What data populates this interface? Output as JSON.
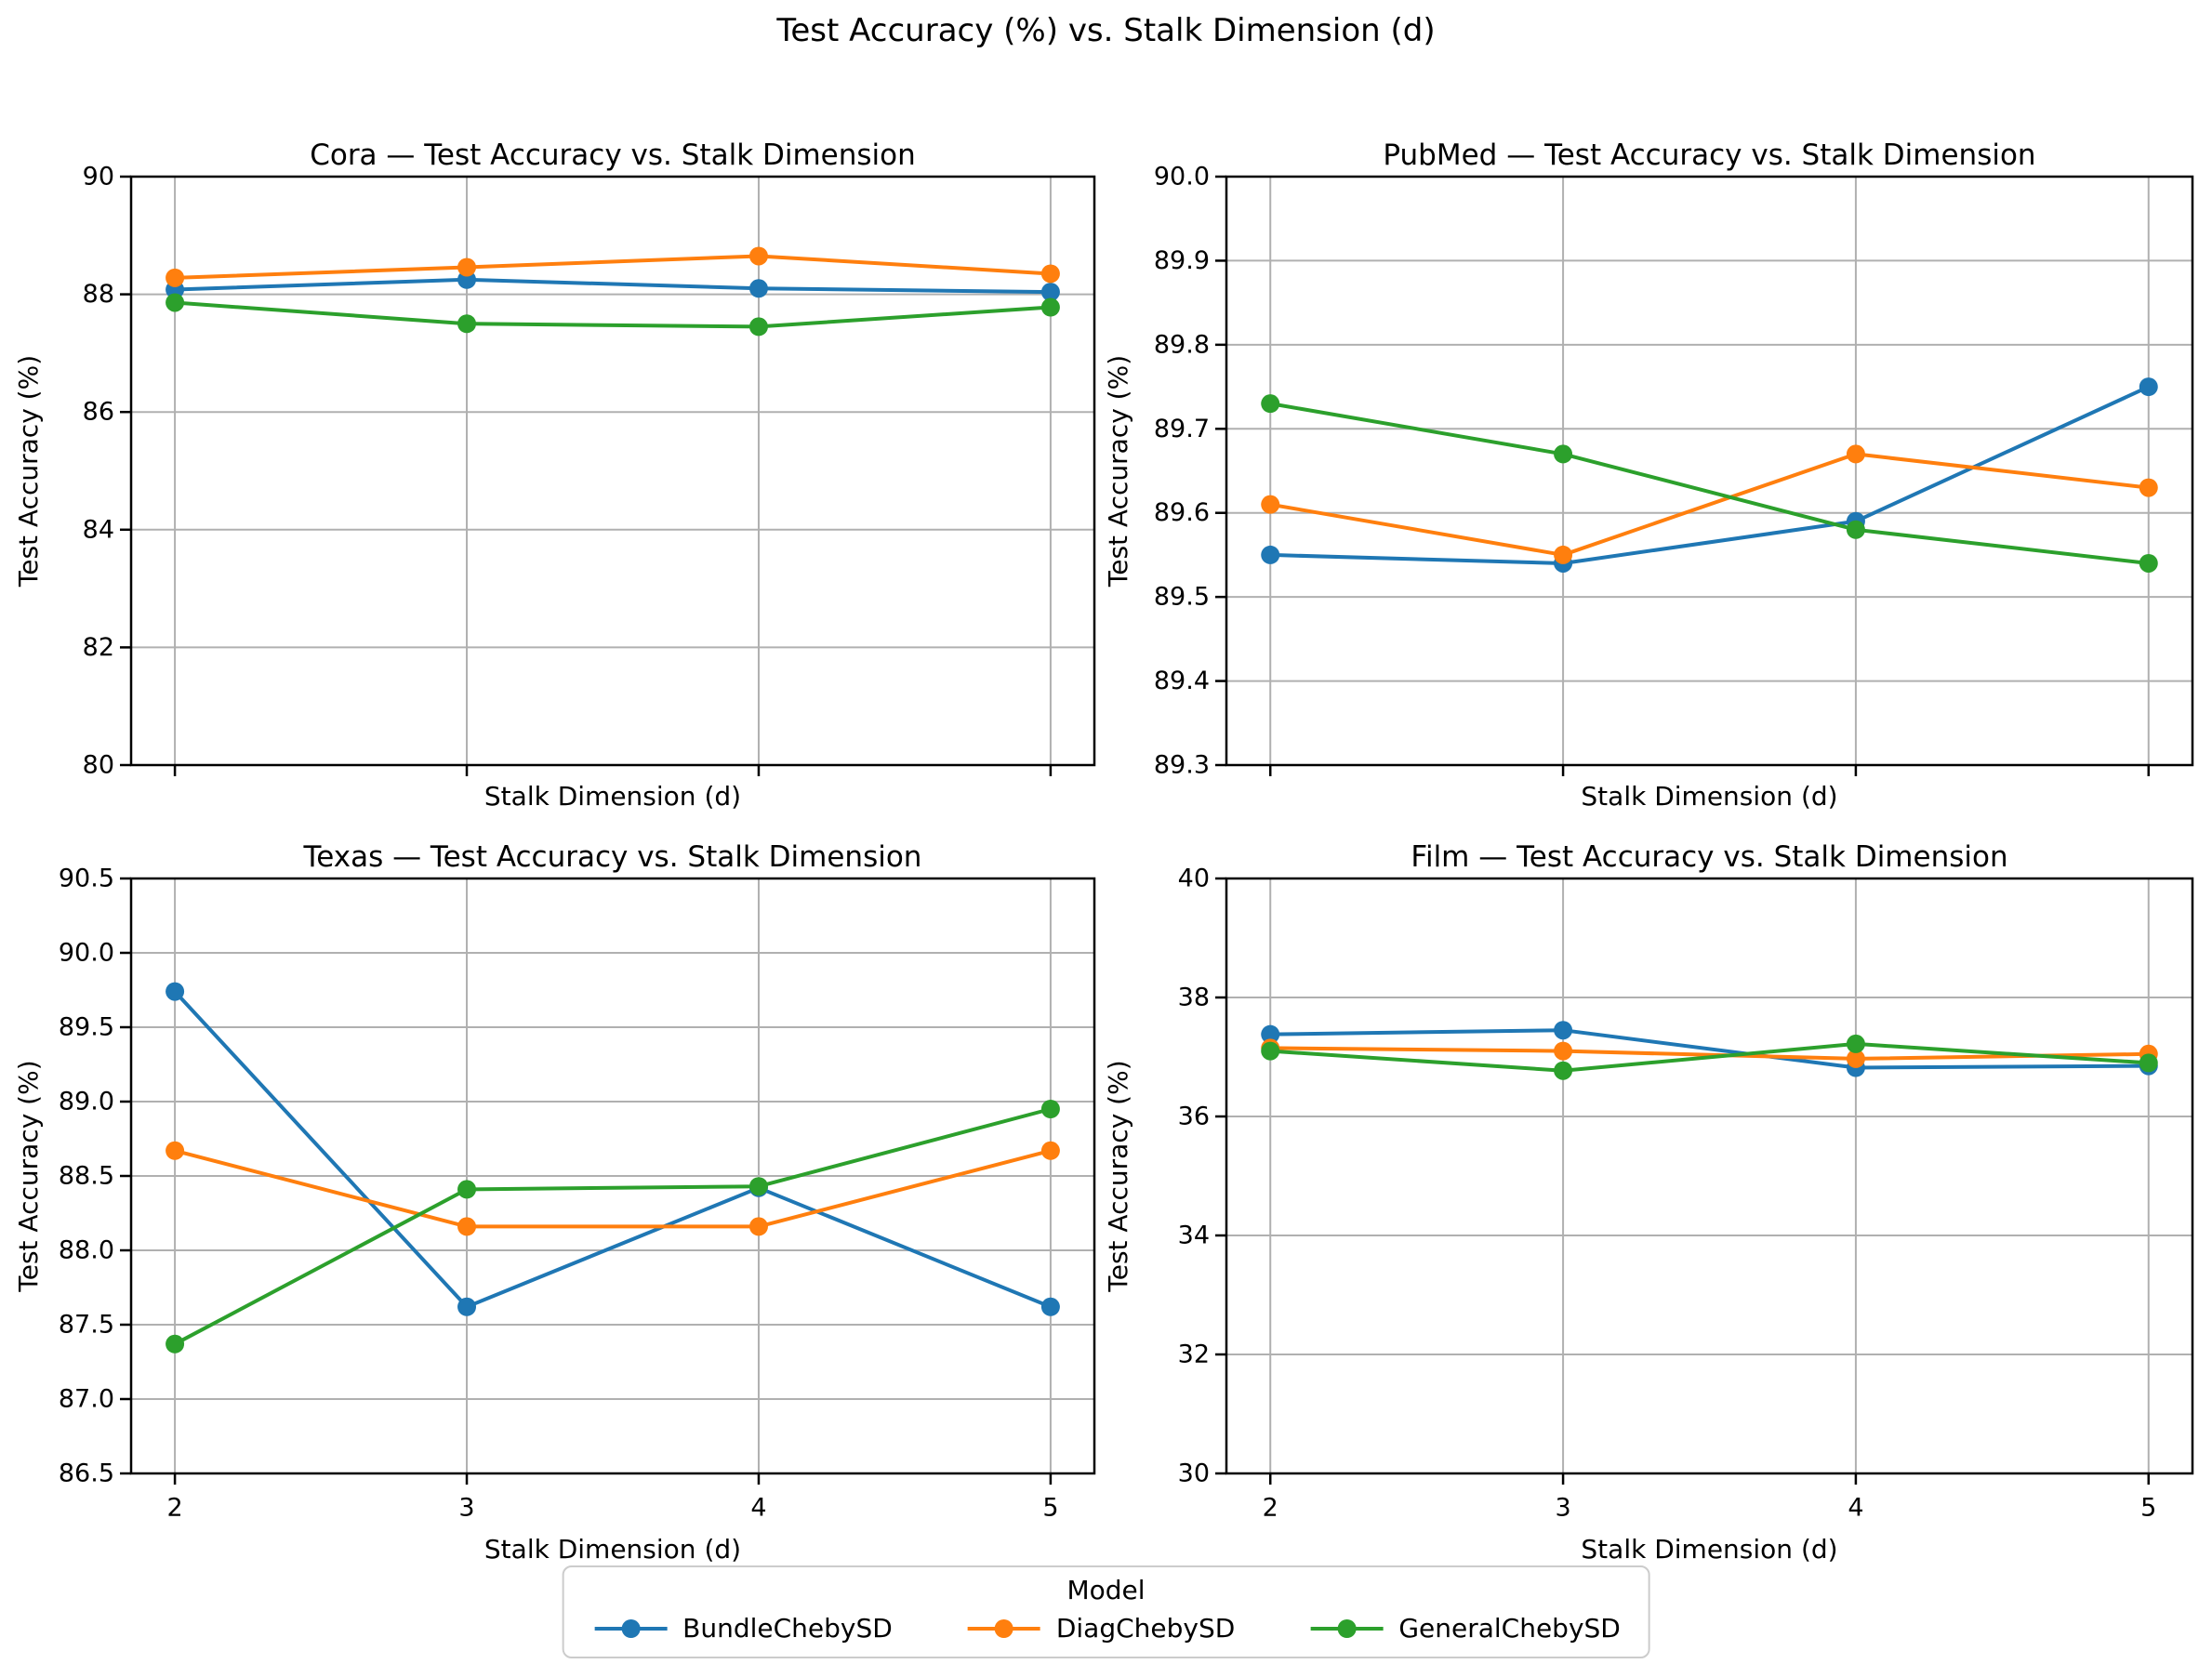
{
  "figure": {
    "title": "Test Accuracy (%) vs. Stalk Dimension (d)"
  },
  "legend": {
    "title": "Model",
    "entries": [
      {
        "label": "BundleChebySD",
        "color": "#1f77b4"
      },
      {
        "label": "DiagChebySD",
        "color": "#ff7f0e"
      },
      {
        "label": "GeneralChebySD",
        "color": "#2ca02c"
      }
    ]
  },
  "colors": {
    "background": "#ffffff",
    "grid": "#b0b0b0",
    "spine": "#000000",
    "blue": "#1f77b4",
    "orange": "#ff7f0e",
    "green": "#2ca02c"
  },
  "chart_data": [
    {
      "type": "line",
      "dataset": "Cora",
      "title": "Cora — Test Accuracy vs. Stalk Dimension",
      "xlabel": "Stalk Dimension (d)",
      "ylabel": "Test Accuracy (%)",
      "x": [
        2,
        3,
        4,
        5
      ],
      "xtick_labels": [
        "2",
        "3",
        "4",
        "5"
      ],
      "show_xtick_labels": false,
      "xlim": [
        1.85,
        5.15
      ],
      "ylim": [
        80,
        90
      ],
      "yticks": [
        80,
        82,
        84,
        86,
        88,
        90
      ],
      "ytick_labels": [
        "80",
        "82",
        "84",
        "86",
        "88",
        "90"
      ],
      "grid": true,
      "series": [
        {
          "name": "BundleChebySD",
          "color": "#1f77b4",
          "values": [
            88.08,
            88.25,
            88.1,
            88.04
          ]
        },
        {
          "name": "DiagChebySD",
          "color": "#ff7f0e",
          "values": [
            88.28,
            88.46,
            88.65,
            88.35
          ]
        },
        {
          "name": "GeneralChebySD",
          "color": "#2ca02c",
          "values": [
            87.86,
            87.5,
            87.45,
            87.78
          ]
        }
      ]
    },
    {
      "type": "line",
      "dataset": "PubMed",
      "title": "PubMed — Test Accuracy vs. Stalk Dimension",
      "xlabel": "Stalk Dimension (d)",
      "ylabel": "Test Accuracy (%)",
      "x": [
        2,
        3,
        4,
        5
      ],
      "xtick_labels": [
        "2",
        "3",
        "4",
        "5"
      ],
      "show_xtick_labels": false,
      "xlim": [
        1.85,
        5.15
      ],
      "ylim": [
        89.3,
        90.0
      ],
      "yticks": [
        89.3,
        89.4,
        89.5,
        89.6,
        89.7,
        89.8,
        89.9,
        90.0
      ],
      "ytick_labels": [
        "89.3",
        "89.4",
        "89.5",
        "89.6",
        "89.7",
        "89.8",
        "89.9",
        "90.0"
      ],
      "grid": true,
      "series": [
        {
          "name": "BundleChebySD",
          "color": "#1f77b4",
          "values": [
            89.55,
            89.54,
            89.59,
            89.75
          ]
        },
        {
          "name": "DiagChebySD",
          "color": "#ff7f0e",
          "values": [
            89.61,
            89.55,
            89.67,
            89.63
          ]
        },
        {
          "name": "GeneralChebySD",
          "color": "#2ca02c",
          "values": [
            89.73,
            89.67,
            89.58,
            89.54
          ]
        }
      ]
    },
    {
      "type": "line",
      "dataset": "Texas",
      "title": "Texas — Test Accuracy vs. Stalk Dimension",
      "xlabel": "Stalk Dimension (d)",
      "ylabel": "Test Accuracy (%)",
      "x": [
        2,
        3,
        4,
        5
      ],
      "xtick_labels": [
        "2",
        "3",
        "4",
        "5"
      ],
      "show_xtick_labels": true,
      "xlim": [
        1.85,
        5.15
      ],
      "ylim": [
        86.5,
        90.5
      ],
      "yticks": [
        86.5,
        87.0,
        87.5,
        88.0,
        88.5,
        89.0,
        89.5,
        90.0,
        90.5
      ],
      "ytick_labels": [
        "86.5",
        "87.0",
        "87.5",
        "88.0",
        "88.5",
        "89.0",
        "89.5",
        "90.0",
        "90.5"
      ],
      "grid": true,
      "series": [
        {
          "name": "BundleChebySD",
          "color": "#1f77b4",
          "values": [
            89.74,
            87.62,
            88.42,
            87.62
          ]
        },
        {
          "name": "DiagChebySD",
          "color": "#ff7f0e",
          "values": [
            88.67,
            88.16,
            88.16,
            88.67
          ]
        },
        {
          "name": "GeneralChebySD",
          "color": "#2ca02c",
          "values": [
            87.37,
            88.41,
            88.43,
            88.95
          ]
        }
      ]
    },
    {
      "type": "line",
      "dataset": "Film",
      "title": "Film — Test Accuracy vs. Stalk Dimension",
      "xlabel": "Stalk Dimension (d)",
      "ylabel": "Test Accuracy (%)",
      "x": [
        2,
        3,
        4,
        5
      ],
      "xtick_labels": [
        "2",
        "3",
        "4",
        "5"
      ],
      "show_xtick_labels": true,
      "xlim": [
        1.85,
        5.15
      ],
      "ylim": [
        30,
        40
      ],
      "yticks": [
        30,
        32,
        34,
        36,
        38,
        40
      ],
      "ytick_labels": [
        "30",
        "32",
        "34",
        "36",
        "38",
        "40"
      ],
      "grid": true,
      "series": [
        {
          "name": "BundleChebySD",
          "color": "#1f77b4",
          "values": [
            37.38,
            37.45,
            36.82,
            36.85
          ]
        },
        {
          "name": "DiagChebySD",
          "color": "#ff7f0e",
          "values": [
            37.15,
            37.1,
            36.97,
            37.05
          ]
        },
        {
          "name": "GeneralChebySD",
          "color": "#2ca02c",
          "values": [
            37.1,
            36.77,
            37.22,
            36.9
          ]
        }
      ]
    }
  ]
}
